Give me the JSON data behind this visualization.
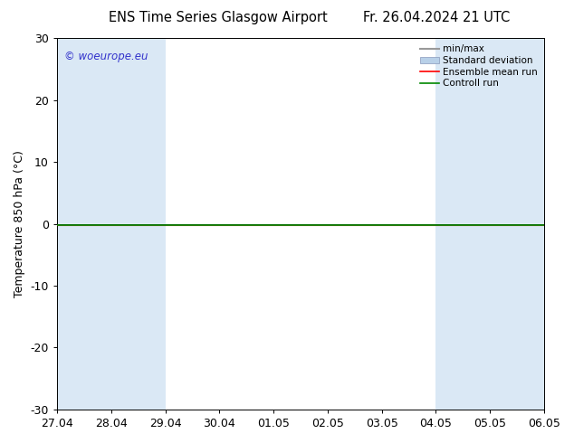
{
  "title_left": "ENS Time Series Glasgow Airport",
  "title_right": "Fr. 26.04.2024 21 UTC",
  "ylabel": "Temperature 850 hPa (°C)",
  "xlabel": "",
  "ylim": [
    -30,
    30
  ],
  "yticks": [
    -30,
    -20,
    -10,
    0,
    10,
    20,
    30
  ],
  "xtick_labels": [
    "27.04",
    "28.04",
    "29.04",
    "30.04",
    "01.05",
    "02.05",
    "03.05",
    "04.05",
    "05.05",
    "06.05"
  ],
  "background_color": "#ffffff",
  "plot_bg_color": "#ffffff",
  "shaded_color": "#dae8f5",
  "watermark": "© woeurope.eu",
  "watermark_color": "#3333cc",
  "legend_entries": [
    "min/max",
    "Standard deviation",
    "Ensemble mean run",
    "Controll run"
  ],
  "legend_colors": [
    "#999999",
    "#b8d0e8",
    "#ff0000",
    "#008800"
  ],
  "font_size": 9,
  "title_font_size": 10.5
}
